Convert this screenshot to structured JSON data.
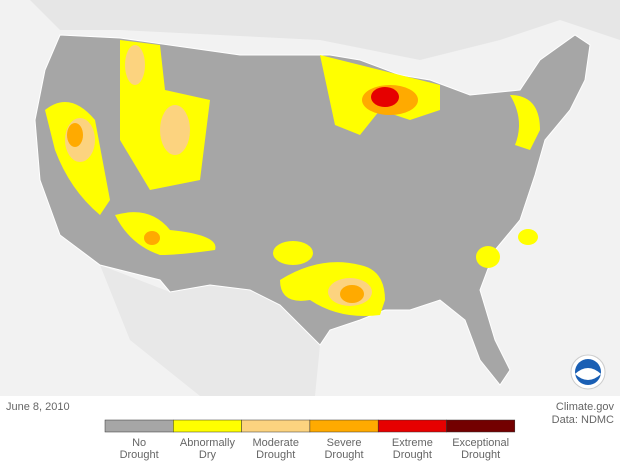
{
  "date": "June 8, 2010",
  "credit": {
    "site": "Climate.gov",
    "source": "Data: NDMC"
  },
  "legend": {
    "items": [
      {
        "label": [
          "No",
          "Drought"
        ],
        "color": "#a6a6a6"
      },
      {
        "label": [
          "Abnormally",
          "Dry"
        ],
        "color": "#ffff00"
      },
      {
        "label": [
          "Moderate",
          "Drought"
        ],
        "color": "#fcd37f"
      },
      {
        "label": [
          "Severe",
          "Drought"
        ],
        "color": "#ffaa00"
      },
      {
        "label": [
          "Extreme",
          "Drought"
        ],
        "color": "#e60000"
      },
      {
        "label": [
          "Exceptional",
          "Drought"
        ],
        "color": "#730000"
      }
    ]
  }
}
